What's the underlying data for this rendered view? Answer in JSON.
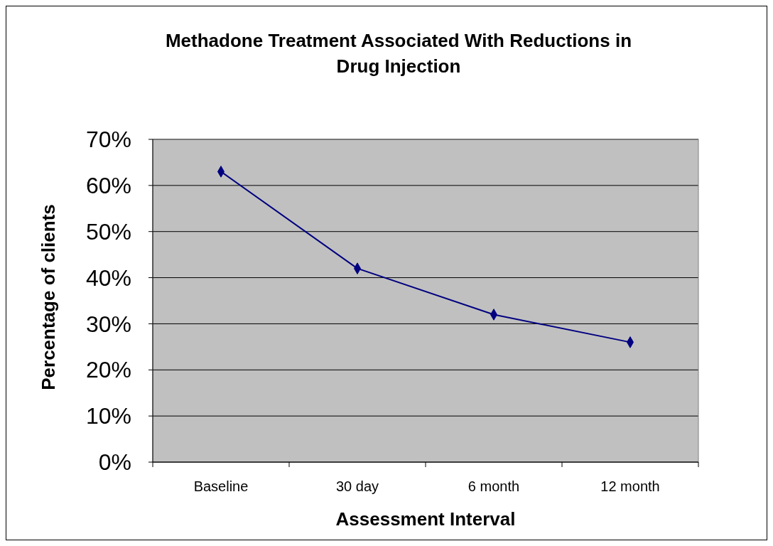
{
  "chart_data": {
    "type": "line",
    "title": "Methadone Treatment Associated With Reductions in Drug Injection",
    "xlabel": "Assessment Interval",
    "ylabel": "Percentage of clients",
    "categories": [
      "Baseline",
      "30 day",
      "6 month",
      "12 month"
    ],
    "series": [
      {
        "color": "#000080",
        "values": [
          63,
          42,
          32,
          26
        ]
      }
    ],
    "ylim": [
      0,
      70
    ],
    "yticks": [
      {
        "value": 0,
        "label": "0%"
      },
      {
        "value": 10,
        "label": "10%"
      },
      {
        "value": 20,
        "label": "20%"
      },
      {
        "value": 30,
        "label": "30%"
      },
      {
        "value": 40,
        "label": "40%"
      },
      {
        "value": 50,
        "label": "50%"
      },
      {
        "value": 60,
        "label": "60%"
      },
      {
        "value": 70,
        "label": "70%"
      }
    ],
    "grid": "y",
    "marker": "diamond",
    "line_style": "solid"
  }
}
